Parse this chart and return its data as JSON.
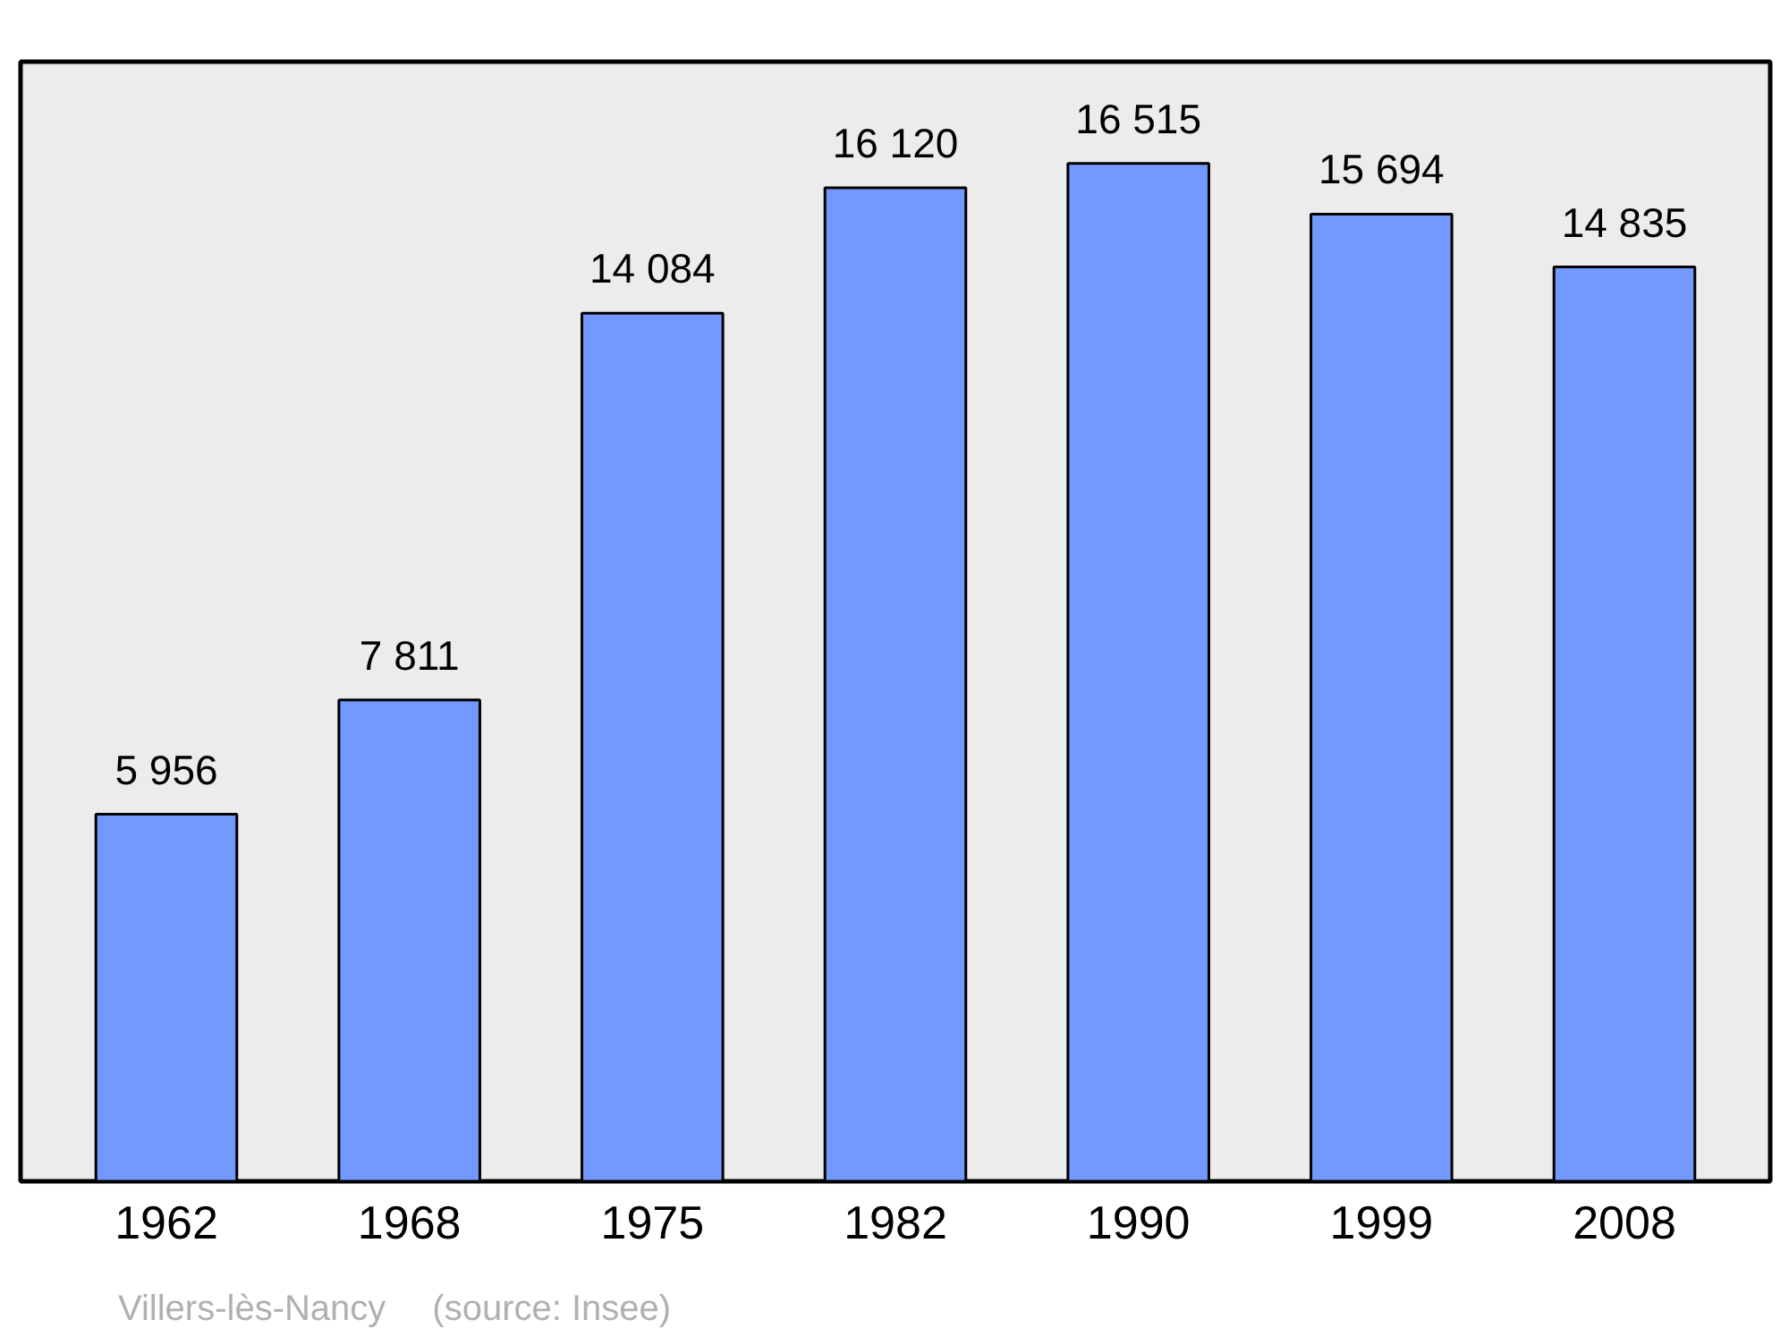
{
  "chart_data": {
    "type": "bar",
    "categories": [
      "1962",
      "1968",
      "1975",
      "1982",
      "1990",
      "1999",
      "2008"
    ],
    "values": [
      5956,
      7811,
      14084,
      16120,
      16515,
      15694,
      14835
    ],
    "color": "#7399ff",
    "data_labels": true,
    "value_labels": [
      "5 956",
      "7 811",
      "14 084",
      "16 120",
      "16 515",
      "15 694",
      "14 835"
    ],
    "grid": false,
    "annotations": [
      "Villers-lès-Nancy",
      "(source: Insee)"
    ]
  }
}
